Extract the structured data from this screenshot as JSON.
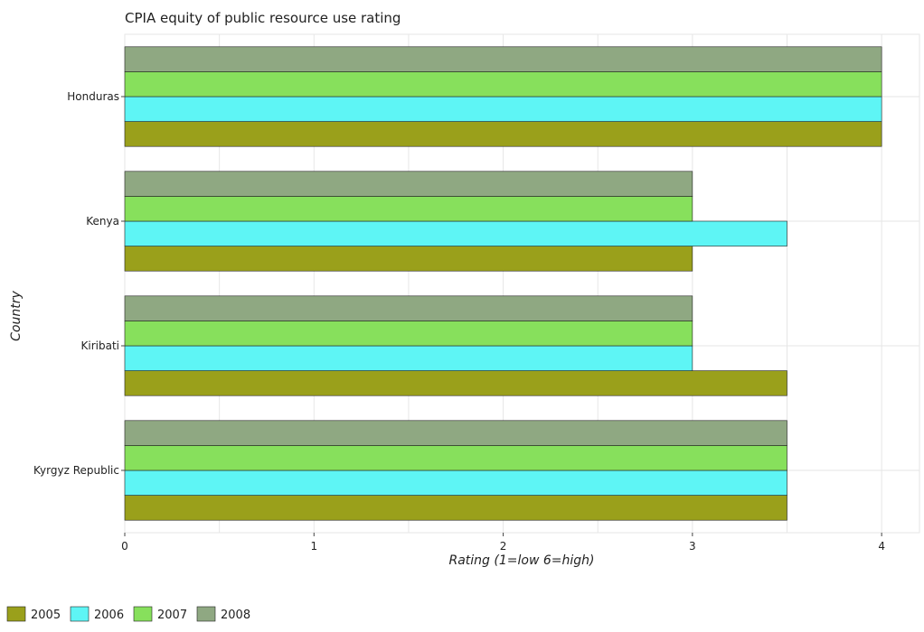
{
  "chart_data": {
    "type": "bar",
    "orientation": "horizontal",
    "title": "CPIA equity of public resource use rating",
    "xlabel": "Rating (1=low 6=high)",
    "ylabel": "Country",
    "xlim": [
      0,
      4.2
    ],
    "x_ticks": [
      0,
      1,
      2,
      3,
      4
    ],
    "categories": [
      "Honduras",
      "Kenya",
      "Kiribati",
      "Kyrgyz Republic"
    ],
    "series": [
      {
        "name": "2005",
        "color": "#9aa01b",
        "values": [
          4.0,
          3.0,
          3.5,
          3.5
        ]
      },
      {
        "name": "2006",
        "color": "#5ef5f5",
        "values": [
          4.0,
          3.5,
          3.0,
          3.5
        ]
      },
      {
        "name": "2007",
        "color": "#87e05c",
        "values": [
          4.0,
          3.0,
          3.0,
          3.5
        ]
      },
      {
        "name": "2008",
        "color": "#8fa882",
        "values": [
          4.0,
          3.0,
          3.0,
          3.5
        ]
      }
    ],
    "grid": true,
    "legend_position": "bottom-left"
  }
}
